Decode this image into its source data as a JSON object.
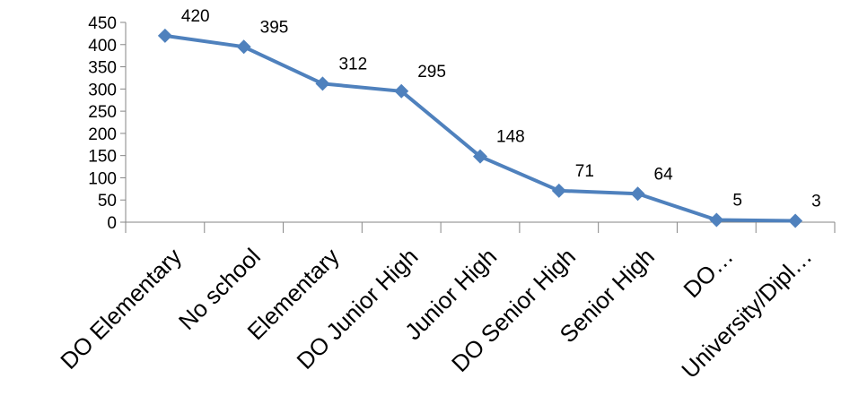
{
  "chart_data": {
    "type": "line",
    "categories": [
      "DO Elementary",
      "No school",
      "Elementary",
      "DO Junior High",
      "Junior High",
      "DO Senior High",
      "Senior High",
      "DO…",
      "University/Dipl…"
    ],
    "values": [
      420,
      395,
      312,
      295,
      148,
      71,
      64,
      5,
      3
    ],
    "yticks": [
      "0",
      "50",
      "100",
      "150",
      "200",
      "250",
      "300",
      "350",
      "400",
      "450"
    ],
    "ylim": [
      0,
      450
    ],
    "grid": false,
    "legend": "none",
    "marker": "diamond",
    "colors": {
      "series": "#4F81BD",
      "axis": "#868686"
    }
  }
}
